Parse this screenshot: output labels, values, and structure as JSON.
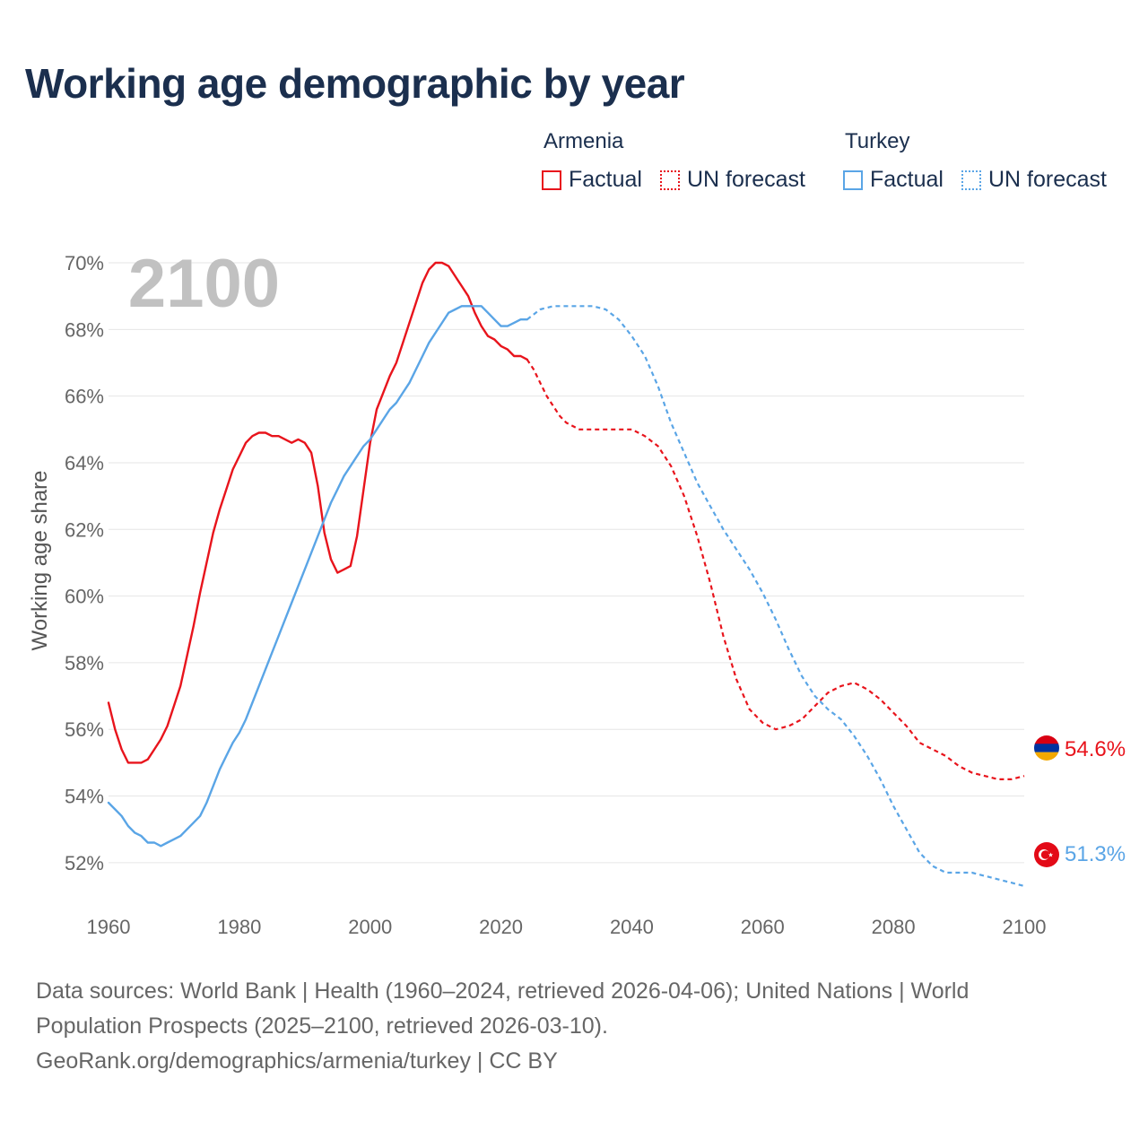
{
  "title": "Working age demographic by year",
  "year_label": "2100",
  "legend": {
    "groups": [
      {
        "name": "Armenia",
        "factual_label": "Factual",
        "forecast_label": "UN forecast",
        "color": "#e8141c"
      },
      {
        "name": "Turkey",
        "factual_label": "Factual",
        "forecast_label": "UN forecast",
        "color": "#5aa5e6"
      }
    ]
  },
  "end_labels": {
    "armenia": "54.6%",
    "turkey": "51.3%"
  },
  "flags": {
    "armenia": "armenia-flag-icon",
    "turkey": "turkey-flag-icon"
  },
  "source": {
    "line1": "Data sources: World Bank | Health (1960–2024, retrieved 2026-04-06); United Nations | World",
    "line2": "Population Prospects (2025–2100, retrieved 2026-03-10).",
    "line3": "GeoRank.org/demographics/armenia/turkey | CC BY"
  },
  "chart_data": {
    "type": "line",
    "title": "Working age demographic by year",
    "xlabel": "",
    "ylabel": "Working age share",
    "xlim": [
      1960,
      2100
    ],
    "ylim": [
      51,
      70
    ],
    "x_ticks": [
      "1960",
      "1980",
      "2000",
      "2020",
      "2040",
      "2060",
      "2080",
      "2100"
    ],
    "y_ticks": [
      "52%",
      "54%",
      "56%",
      "58%",
      "60%",
      "62%",
      "64%",
      "66%",
      "68%",
      "70%"
    ],
    "grid": true,
    "series": [
      {
        "name": "Armenia",
        "color": "#e8141c",
        "factual_until": 2024,
        "points": [
          [
            1960,
            56.8
          ],
          [
            1961,
            56.0
          ],
          [
            1962,
            55.4
          ],
          [
            1963,
            55.0
          ],
          [
            1964,
            55.0
          ],
          [
            1965,
            55.0
          ],
          [
            1966,
            55.1
          ],
          [
            1967,
            55.4
          ],
          [
            1968,
            55.7
          ],
          [
            1969,
            56.1
          ],
          [
            1970,
            56.7
          ],
          [
            1971,
            57.3
          ],
          [
            1972,
            58.2
          ],
          [
            1973,
            59.1
          ],
          [
            1974,
            60.1
          ],
          [
            1975,
            61.0
          ],
          [
            1976,
            61.9
          ],
          [
            1977,
            62.6
          ],
          [
            1978,
            63.2
          ],
          [
            1979,
            63.8
          ],
          [
            1980,
            64.2
          ],
          [
            1981,
            64.6
          ],
          [
            1982,
            64.8
          ],
          [
            1983,
            64.9
          ],
          [
            1984,
            64.9
          ],
          [
            1985,
            64.8
          ],
          [
            1986,
            64.8
          ],
          [
            1987,
            64.7
          ],
          [
            1988,
            64.6
          ],
          [
            1989,
            64.7
          ],
          [
            1990,
            64.6
          ],
          [
            1991,
            64.3
          ],
          [
            1992,
            63.3
          ],
          [
            1993,
            61.9
          ],
          [
            1994,
            61.1
          ],
          [
            1995,
            60.7
          ],
          [
            1996,
            60.8
          ],
          [
            1997,
            60.9
          ],
          [
            1998,
            61.8
          ],
          [
            1999,
            63.2
          ],
          [
            2000,
            64.6
          ],
          [
            2001,
            65.6
          ],
          [
            2002,
            66.1
          ],
          [
            2003,
            66.6
          ],
          [
            2004,
            67.0
          ],
          [
            2005,
            67.6
          ],
          [
            2006,
            68.2
          ],
          [
            2007,
            68.8
          ],
          [
            2008,
            69.4
          ],
          [
            2009,
            69.8
          ],
          [
            2010,
            70.0
          ],
          [
            2011,
            70.0
          ],
          [
            2012,
            69.9
          ],
          [
            2013,
            69.6
          ],
          [
            2014,
            69.3
          ],
          [
            2015,
            69.0
          ],
          [
            2016,
            68.5
          ],
          [
            2017,
            68.1
          ],
          [
            2018,
            67.8
          ],
          [
            2019,
            67.7
          ],
          [
            2020,
            67.5
          ],
          [
            2021,
            67.4
          ],
          [
            2022,
            67.2
          ],
          [
            2023,
            67.2
          ],
          [
            2024,
            67.1
          ],
          [
            2025,
            66.8
          ],
          [
            2026,
            66.4
          ],
          [
            2027,
            66.0
          ],
          [
            2028,
            65.7
          ],
          [
            2029,
            65.4
          ],
          [
            2030,
            65.2
          ],
          [
            2031,
            65.1
          ],
          [
            2032,
            65.0
          ],
          [
            2034,
            65.0
          ],
          [
            2036,
            65.0
          ],
          [
            2038,
            65.0
          ],
          [
            2040,
            65.0
          ],
          [
            2042,
            64.8
          ],
          [
            2044,
            64.5
          ],
          [
            2046,
            63.9
          ],
          [
            2048,
            63.0
          ],
          [
            2050,
            61.8
          ],
          [
            2052,
            60.4
          ],
          [
            2054,
            58.8
          ],
          [
            2056,
            57.5
          ],
          [
            2058,
            56.6
          ],
          [
            2060,
            56.2
          ],
          [
            2062,
            56.0
          ],
          [
            2064,
            56.1
          ],
          [
            2066,
            56.3
          ],
          [
            2068,
            56.7
          ],
          [
            2070,
            57.1
          ],
          [
            2072,
            57.3
          ],
          [
            2074,
            57.4
          ],
          [
            2076,
            57.2
          ],
          [
            2078,
            56.9
          ],
          [
            2080,
            56.5
          ],
          [
            2082,
            56.1
          ],
          [
            2084,
            55.6
          ],
          [
            2086,
            55.4
          ],
          [
            2088,
            55.2
          ],
          [
            2090,
            54.9
          ],
          [
            2092,
            54.7
          ],
          [
            2094,
            54.6
          ],
          [
            2096,
            54.5
          ],
          [
            2098,
            54.5
          ],
          [
            2100,
            54.6
          ]
        ]
      },
      {
        "name": "Turkey",
        "color": "#5aa5e6",
        "factual_until": 2024,
        "points": [
          [
            1960,
            53.8
          ],
          [
            1961,
            53.6
          ],
          [
            1962,
            53.4
          ],
          [
            1963,
            53.1
          ],
          [
            1964,
            52.9
          ],
          [
            1965,
            52.8
          ],
          [
            1966,
            52.6
          ],
          [
            1967,
            52.6
          ],
          [
            1968,
            52.5
          ],
          [
            1969,
            52.6
          ],
          [
            1970,
            52.7
          ],
          [
            1971,
            52.8
          ],
          [
            1972,
            53.0
          ],
          [
            1973,
            53.2
          ],
          [
            1974,
            53.4
          ],
          [
            1975,
            53.8
          ],
          [
            1976,
            54.3
          ],
          [
            1977,
            54.8
          ],
          [
            1978,
            55.2
          ],
          [
            1979,
            55.6
          ],
          [
            1980,
            55.9
          ],
          [
            1981,
            56.3
          ],
          [
            1982,
            56.8
          ],
          [
            1983,
            57.3
          ],
          [
            1984,
            57.8
          ],
          [
            1985,
            58.3
          ],
          [
            1986,
            58.8
          ],
          [
            1987,
            59.3
          ],
          [
            1988,
            59.8
          ],
          [
            1989,
            60.3
          ],
          [
            1990,
            60.8
          ],
          [
            1991,
            61.3
          ],
          [
            1992,
            61.8
          ],
          [
            1993,
            62.3
          ],
          [
            1994,
            62.8
          ],
          [
            1995,
            63.2
          ],
          [
            1996,
            63.6
          ],
          [
            1997,
            63.9
          ],
          [
            1998,
            64.2
          ],
          [
            1999,
            64.5
          ],
          [
            2000,
            64.7
          ],
          [
            2001,
            65.0
          ],
          [
            2002,
            65.3
          ],
          [
            2003,
            65.6
          ],
          [
            2004,
            65.8
          ],
          [
            2005,
            66.1
          ],
          [
            2006,
            66.4
          ],
          [
            2007,
            66.8
          ],
          [
            2008,
            67.2
          ],
          [
            2009,
            67.6
          ],
          [
            2010,
            67.9
          ],
          [
            2011,
            68.2
          ],
          [
            2012,
            68.5
          ],
          [
            2013,
            68.6
          ],
          [
            2014,
            68.7
          ],
          [
            2015,
            68.7
          ],
          [
            2016,
            68.7
          ],
          [
            2017,
            68.7
          ],
          [
            2018,
            68.5
          ],
          [
            2019,
            68.3
          ],
          [
            2020,
            68.1
          ],
          [
            2021,
            68.1
          ],
          [
            2022,
            68.2
          ],
          [
            2023,
            68.3
          ],
          [
            2024,
            68.3
          ],
          [
            2026,
            68.6
          ],
          [
            2028,
            68.7
          ],
          [
            2030,
            68.7
          ],
          [
            2032,
            68.7
          ],
          [
            2034,
            68.7
          ],
          [
            2036,
            68.6
          ],
          [
            2038,
            68.3
          ],
          [
            2040,
            67.8
          ],
          [
            2042,
            67.2
          ],
          [
            2044,
            66.3
          ],
          [
            2046,
            65.2
          ],
          [
            2048,
            64.3
          ],
          [
            2050,
            63.4
          ],
          [
            2052,
            62.7
          ],
          [
            2054,
            62.0
          ],
          [
            2056,
            61.4
          ],
          [
            2058,
            60.8
          ],
          [
            2060,
            60.1
          ],
          [
            2062,
            59.3
          ],
          [
            2064,
            58.4
          ],
          [
            2066,
            57.6
          ],
          [
            2068,
            57.0
          ],
          [
            2070,
            56.6
          ],
          [
            2072,
            56.3
          ],
          [
            2074,
            55.8
          ],
          [
            2076,
            55.2
          ],
          [
            2078,
            54.5
          ],
          [
            2080,
            53.7
          ],
          [
            2082,
            53.0
          ],
          [
            2084,
            52.3
          ],
          [
            2086,
            51.9
          ],
          [
            2088,
            51.7
          ],
          [
            2090,
            51.7
          ],
          [
            2092,
            51.7
          ],
          [
            2094,
            51.6
          ],
          [
            2096,
            51.5
          ],
          [
            2098,
            51.4
          ],
          [
            2100,
            51.3
          ]
        ]
      }
    ]
  }
}
